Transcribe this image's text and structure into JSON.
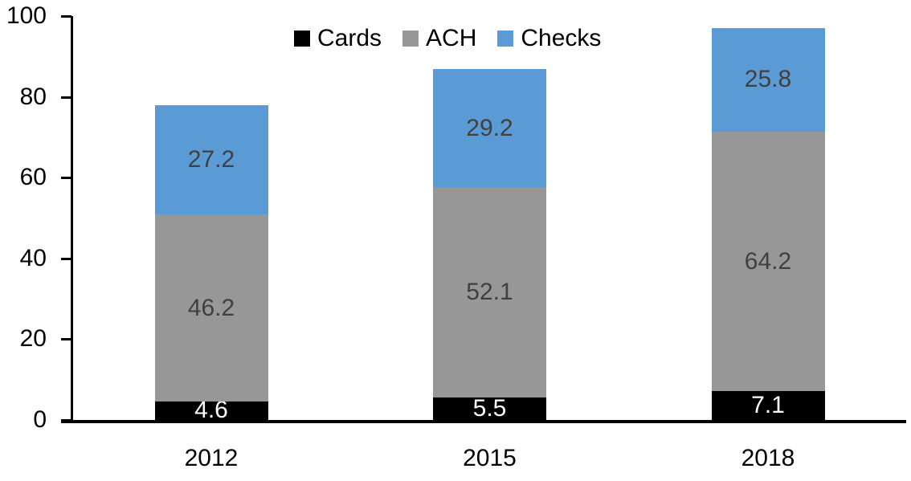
{
  "chart_data": {
    "type": "bar",
    "stacked": true,
    "title": "",
    "xlabel": "",
    "ylabel": "",
    "categories": [
      "2012",
      "2015",
      "2018"
    ],
    "series": [
      {
        "name": "Cards",
        "color": "#000000",
        "label_color": "#ffffff",
        "values": [
          4.6,
          5.5,
          7.1
        ]
      },
      {
        "name": "ACH",
        "color": "#979797",
        "label_color": "#404040",
        "values": [
          46.2,
          52.1,
          64.2
        ]
      },
      {
        "name": "Checks",
        "color": "#5B9BD5",
        "label_color": "#404040",
        "values": [
          27.2,
          29.2,
          25.8
        ]
      }
    ],
    "ylim": [
      0,
      100
    ],
    "yticks": [
      0,
      20,
      40,
      60,
      80,
      100
    ],
    "grid": false,
    "legend_position": "top-center",
    "axis_color": "#000000",
    "tick_label_color": "#000000"
  }
}
